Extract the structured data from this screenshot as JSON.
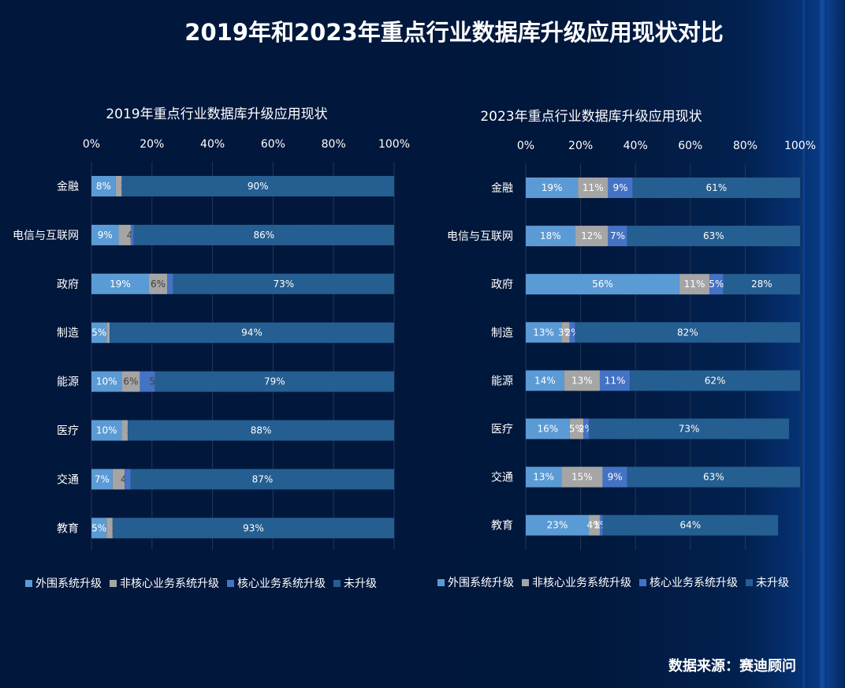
{
  "page": {
    "title": "2019年和2023年重点行业数据库升级应用现状对比",
    "source": "数据来源：赛迪顾问"
  },
  "colors": {
    "外围系统升级": "#5b9bd5",
    "非核心业务系统升级": "#a5a5a5",
    "核心业务系统升级": "#4472c4",
    "未升级": "#255e91",
    "background": "#01183d",
    "label_dark": "#404040",
    "label_light": "#ffffff"
  },
  "chart_data": [
    {
      "type": "bar",
      "orientation": "horizontal-stacked-100",
      "title": "2019年重点行业数据库升级应用现状",
      "categories": [
        "金融",
        "电信与互联网",
        "政府",
        "制造",
        "能源",
        "医疗",
        "交通",
        "教育"
      ],
      "series": [
        {
          "name": "外围系统升级",
          "values": [
            8,
            9,
            19,
            5,
            10,
            10,
            7,
            5
          ]
        },
        {
          "name": "非核心业务系统升级",
          "values": [
            2,
            4,
            6,
            1,
            6,
            2,
            4,
            2
          ]
        },
        {
          "name": "核心业务系统升级",
          "values": [
            0,
            1,
            2,
            0,
            5,
            0,
            2,
            0
          ]
        },
        {
          "name": "未升级",
          "values": [
            90,
            86,
            73,
            94,
            79,
            88,
            87,
            93
          ]
        }
      ],
      "xticks": [
        "0%",
        "20%",
        "40%",
        "60%",
        "80%",
        "100%"
      ],
      "xlim": [
        0,
        100
      ],
      "xaxis_position": "top",
      "grid": true,
      "legend": "bottom"
    },
    {
      "type": "bar",
      "orientation": "horizontal-stacked-100",
      "title": "2023年重点行业数据库升级应用现状",
      "categories": [
        "金融",
        "电信与互联网",
        "政府",
        "制造",
        "能源",
        "医疗",
        "交通",
        "教育"
      ],
      "series": [
        {
          "name": "外围系统升级",
          "values": [
            19,
            18,
            56,
            13,
            14,
            16,
            13,
            23
          ]
        },
        {
          "name": "非核心业务系统升级",
          "values": [
            11,
            12,
            11,
            3,
            13,
            5,
            15,
            4
          ]
        },
        {
          "name": "核心业务系统升级",
          "values": [
            9,
            7,
            5,
            2,
            11,
            2,
            9,
            1
          ]
        },
        {
          "name": "未升级",
          "values": [
            61,
            63,
            28,
            82,
            62,
            73,
            63,
            64
          ]
        }
      ],
      "xticks": [
        "0%",
        "20%",
        "40%",
        "60%",
        "80%",
        "100%"
      ],
      "xlim": [
        0,
        100
      ],
      "xaxis_position": "top",
      "grid": true,
      "legend": "bottom"
    }
  ]
}
